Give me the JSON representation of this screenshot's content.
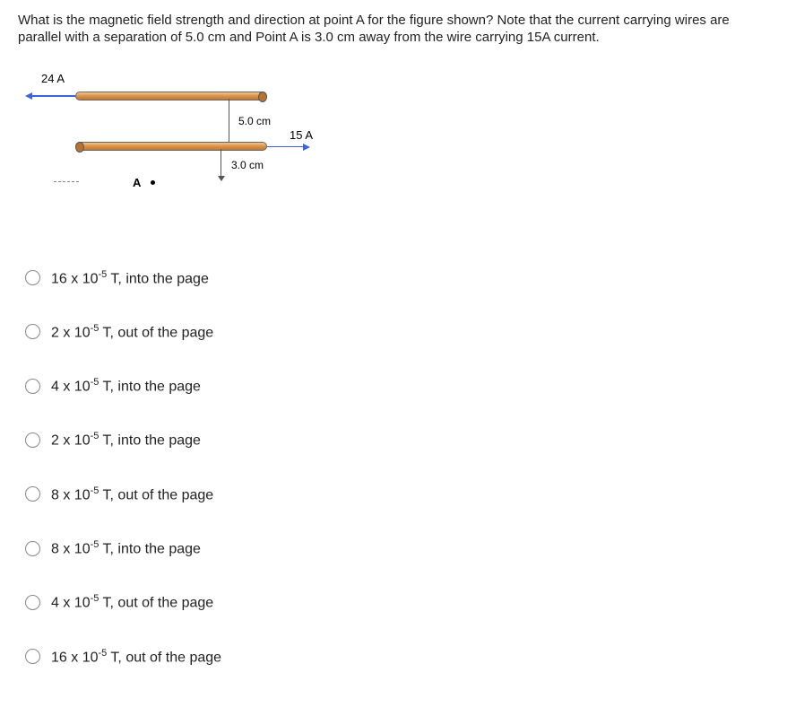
{
  "question": "What is the magnetic field strength and direction at point A for the figure shown? Note that the current carrying wires are parallel with a separation of 5.0 cm and Point A is 3.0 cm away from the wire carrying 15A current.",
  "diagram": {
    "current_top": "24 A",
    "current_bot": "15 A",
    "separation": "5.0 cm",
    "dist_to_A": "3.0 cm",
    "point_label": "A",
    "wire_color_light": "#f0c690",
    "wire_color_dark": "#c17a2f",
    "arrow_color": "#3a64d8"
  },
  "options": [
    {
      "coef": "16",
      "exp": "-5",
      "dir": "into the page"
    },
    {
      "coef": "2",
      "exp": "-5",
      "dir": "out of the page"
    },
    {
      "coef": "4",
      "exp": "-5",
      "dir": "into the page"
    },
    {
      "coef": "2",
      "exp": "-5",
      "dir": "into the page"
    },
    {
      "coef": "8",
      "exp": "-5",
      "dir": "out of the page"
    },
    {
      "coef": "8",
      "exp": "-5",
      "dir": "into the page"
    },
    {
      "coef": "4",
      "exp": "-5",
      "dir": "out of the page"
    },
    {
      "coef": "16",
      "exp": "-5",
      "dir": "out of the page"
    }
  ]
}
